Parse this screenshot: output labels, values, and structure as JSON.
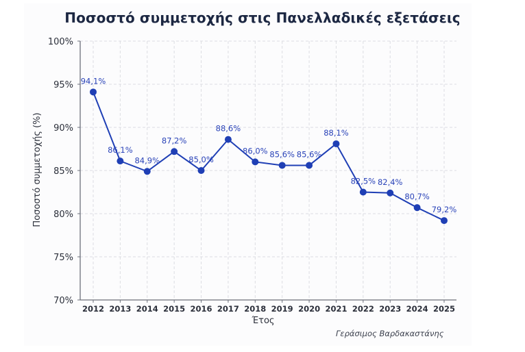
{
  "title": "Ποσοστό συμμετοχής στις Πανελλαδικές εξετάσεις",
  "credit": "Γεράσιμος Βαρδακαστάνης",
  "colors": {
    "line": "#1f3fb5",
    "label": "#2a43b8",
    "grid": "#dcdde2",
    "axis": "#6b6f7a",
    "title": "#1c2742"
  },
  "chart_data": {
    "type": "line",
    "title": "Ποσοστό συμμετοχής στις Πανελλαδικές εξετάσεις",
    "xlabel": "Έτος",
    "ylabel": "Ποσοστό συμμετοχής (%)",
    "ylim": [
      70,
      100
    ],
    "yticks": [
      70,
      75,
      80,
      85,
      90,
      95,
      100
    ],
    "ytick_labels": [
      "70%",
      "75%",
      "80%",
      "85%",
      "90%",
      "95%",
      "100%"
    ],
    "grid": true,
    "legend": null,
    "categories": [
      "2012",
      "2013",
      "2014",
      "2015",
      "2016",
      "2017",
      "2018",
      "2019",
      "2020",
      "2021",
      "2022",
      "2023",
      "2024",
      "2025"
    ],
    "values": [
      94.1,
      86.1,
      84.9,
      87.2,
      85.0,
      88.6,
      86.0,
      85.6,
      85.6,
      88.1,
      82.5,
      82.4,
      80.7,
      79.2
    ],
    "data_labels": [
      "94,1%",
      "86,1%",
      "84,9%",
      "87,2%",
      "85,0%",
      "88,6%",
      "86,0%",
      "85,6%",
      "85,6%",
      "88,1%",
      "82,5%",
      "82,4%",
      "80,7%",
      "79,2%"
    ],
    "annotations": [
      "Γεράσιμος Βαρδακαστάνης"
    ]
  }
}
